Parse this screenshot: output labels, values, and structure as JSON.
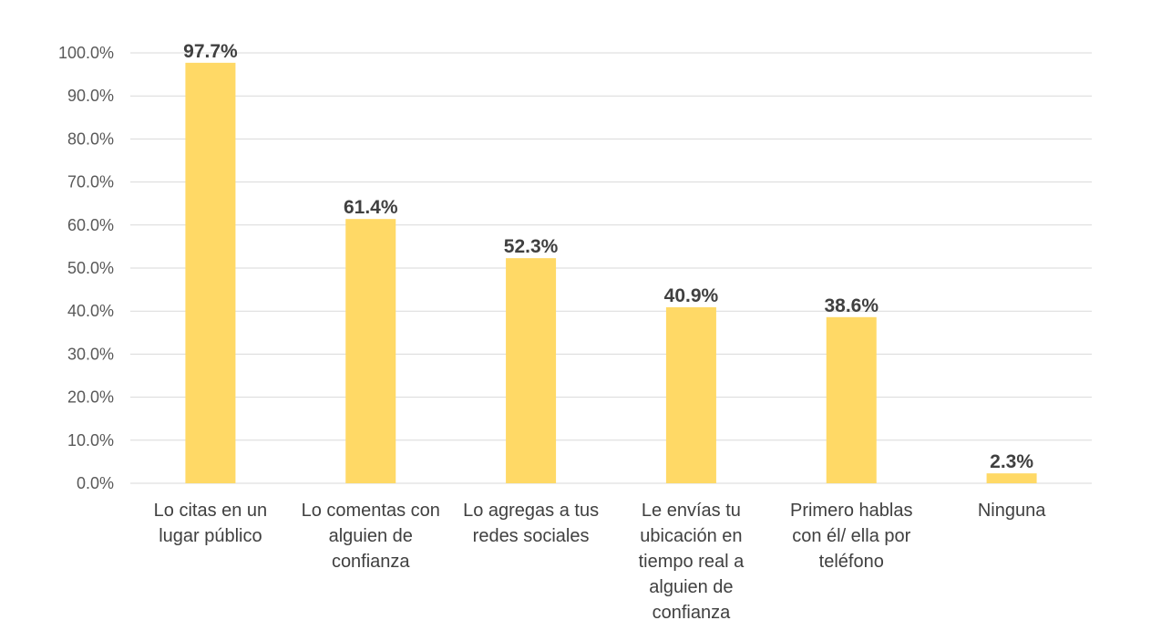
{
  "chart_data": {
    "type": "bar",
    "title": "",
    "xlabel": "",
    "ylabel": "",
    "categories": [
      [
        "Lo citas en un",
        "lugar público"
      ],
      [
        "Lo comentas con",
        "alguien de",
        "confianza"
      ],
      [
        "Lo agregas a tus",
        "redes sociales"
      ],
      [
        "Le envías tu",
        "ubicación en",
        "tiempo real a",
        "alguien de",
        "confianza"
      ],
      [
        "Primero hablas",
        "con él/ ella  por",
        "teléfono"
      ],
      [
        "Ninguna"
      ]
    ],
    "values": [
      97.7,
      61.4,
      52.3,
      40.9,
      38.6,
      2.3
    ],
    "data_labels": [
      "97.7%",
      "61.4%",
      "52.3%",
      "40.9%",
      "38.6%",
      "2.3%"
    ],
    "yticks": [
      "0.0%",
      "10.0%",
      "20.0%",
      "30.0%",
      "40.0%",
      "50.0%",
      "60.0%",
      "70.0%",
      "80.0%",
      "90.0%",
      "100.0%"
    ],
    "ylim": [
      0,
      100
    ],
    "grid": true,
    "legend": "none",
    "colors": {
      "bar": "#ffd966",
      "grid": "#d9d9d9",
      "text": "#404040",
      "tick": "#595959"
    }
  }
}
